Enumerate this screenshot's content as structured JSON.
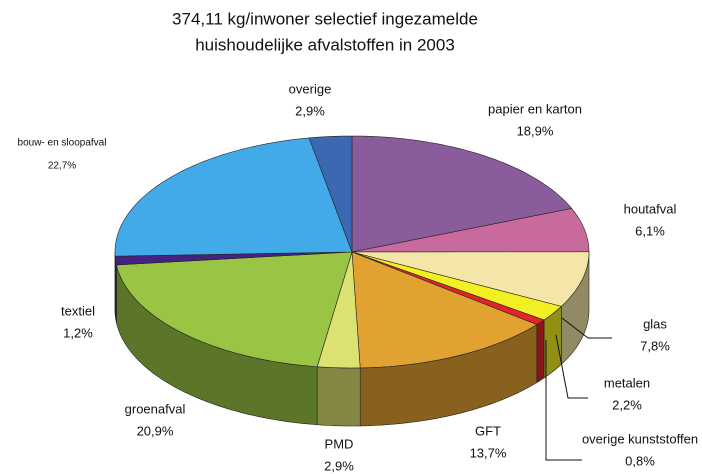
{
  "chart_data": {
    "type": "pie",
    "title": [
      "374,11 kg/inwoner selectief ingezamelde",
      "huishoudelijke afvalstoffen in 2003"
    ],
    "categories": [
      "papier en karton",
      "houtafval",
      "glas",
      "metalen",
      "overige kunststoffen",
      "GFT",
      "PMD",
      "groenafval",
      "textiel",
      "bouw- en sloopafval",
      "overige"
    ],
    "values": [
      18.9,
      6.1,
      7.8,
      2.2,
      0.8,
      13.7,
      2.9,
      20.9,
      1.2,
      22.7,
      2.9
    ],
    "value_labels": [
      "18,9%",
      "6,1%",
      "7,8%",
      "2,2%",
      "0,8%",
      "13,7%",
      "2,9%",
      "20,9%",
      "1,2%",
      "22,7%",
      "2,9%"
    ],
    "colors": [
      "#8a5c9c",
      "#c96a9c",
      "#f4e6a8",
      "#f2f022",
      "#e0242a",
      "#e2a232",
      "#dce272",
      "#9ac444",
      "#43237f",
      "#43aaea",
      "#3b68b0"
    ]
  }
}
